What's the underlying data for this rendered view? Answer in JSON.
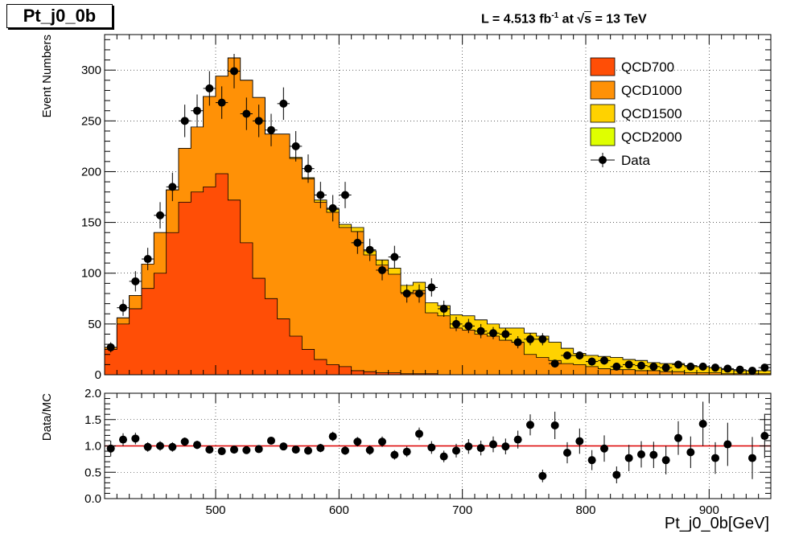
{
  "title": "Pt_j0_0b",
  "lumi": {
    "prefix": "L = 4.513 fb",
    "sup": "-1",
    "middle": " at  √",
    "s": "s",
    "suffix": " = 13 TeV"
  },
  "colors": {
    "QCD700": "#ff4e06",
    "QCD1000": "#ff9106",
    "QCD1500": "#ffd200",
    "QCD2000": "#dfff00",
    "Data": "#000000",
    "ratio_line": "#dd0000"
  },
  "chart_data": [
    {
      "type": "bar",
      "stacked": true,
      "xlabel": "Pt_j0_0b[GeV]",
      "ylabel": "Event Numbers",
      "xlim": [
        410,
        950
      ],
      "ylim": [
        0,
        335
      ],
      "grid": true,
      "legend_position": "top-right",
      "bin_edges": [
        410,
        420,
        430,
        440,
        450,
        460,
        470,
        480,
        490,
        500,
        510,
        520,
        530,
        540,
        550,
        560,
        570,
        580,
        590,
        600,
        610,
        620,
        630,
        640,
        650,
        660,
        670,
        680,
        690,
        700,
        710,
        720,
        730,
        740,
        750,
        760,
        770,
        780,
        790,
        800,
        810,
        820,
        830,
        840,
        850,
        860,
        870,
        880,
        890,
        900,
        910,
        920,
        930,
        940,
        950
      ],
      "series": [
        {
          "name": "QCD700",
          "values": [
            25,
            50,
            65,
            85,
            100,
            140,
            170,
            180,
            185,
            198,
            172,
            130,
            95,
            75,
            55,
            38,
            25,
            15,
            10,
            8,
            4,
            3,
            2,
            2,
            1,
            1,
            1,
            0,
            0,
            0,
            0,
            0,
            0,
            0,
            0,
            0,
            0,
            0,
            0,
            0,
            0,
            0,
            0,
            0,
            0,
            0,
            0,
            0,
            0,
            0,
            0,
            0,
            0,
            0
          ]
        },
        {
          "name": "QCD1000",
          "values": [
            2,
            6,
            13,
            24,
            40,
            42,
            53,
            64,
            89,
            96,
            140,
            160,
            178,
            162,
            182,
            175,
            168,
            155,
            150,
            137,
            137,
            115,
            106,
            97,
            80,
            82,
            60,
            58,
            46,
            44,
            40,
            38,
            34,
            32,
            20,
            17,
            14,
            11,
            10,
            8,
            6,
            5,
            5,
            4,
            4,
            3,
            3,
            2,
            2,
            2,
            1,
            1,
            1,
            1
          ]
        },
        {
          "name": "QCD1500",
          "values": [
            0,
            0,
            0,
            0,
            0,
            0,
            0,
            0,
            0,
            0,
            0,
            0,
            0,
            0,
            0,
            1,
            1,
            2,
            3,
            3,
            4,
            4,
            5,
            6,
            7,
            8,
            10,
            10,
            13,
            14,
            14,
            12,
            12,
            14,
            21,
            21,
            18,
            15,
            11,
            11,
            12,
            12,
            10,
            10,
            8,
            8,
            8,
            7,
            6,
            5,
            4,
            3,
            3,
            3
          ]
        },
        {
          "name": "QCD2000",
          "values": [
            0,
            0,
            0,
            0,
            0,
            0,
            0,
            0,
            0,
            0,
            0,
            0,
            0,
            0,
            0,
            0,
            0,
            0,
            0,
            0,
            0,
            0,
            0,
            0,
            0,
            0,
            0,
            0,
            0,
            0,
            0,
            0,
            0,
            0,
            0,
            0,
            0,
            0,
            0,
            0,
            0,
            0,
            0,
            0,
            0,
            0,
            0,
            0,
            0,
            0,
            0,
            0,
            0,
            0
          ]
        },
        {
          "name": "Data",
          "kind": "points",
          "values": [
            27,
            66,
            92,
            114,
            157,
            185,
            250,
            260,
            282,
            268,
            299,
            257,
            250,
            241,
            267,
            225,
            203,
            177,
            164,
            177,
            130,
            123,
            103,
            116,
            80,
            80,
            86,
            65,
            50,
            48,
            43,
            41,
            40,
            32,
            35,
            35,
            11,
            19,
            19,
            13,
            14,
            8,
            10,
            9,
            8,
            7,
            10,
            8,
            8,
            7,
            6,
            5,
            4,
            7
          ],
          "errors": [
            5,
            8,
            10,
            11,
            13,
            14,
            16,
            16,
            17,
            16,
            17,
            16,
            16,
            16,
            16,
            15,
            14,
            13,
            13,
            13,
            11,
            11,
            10,
            11,
            9,
            9,
            9,
            8,
            7,
            7,
            7,
            6,
            6,
            6,
            6,
            6,
            3,
            4,
            4,
            4,
            4,
            3,
            3,
            3,
            3,
            3,
            3,
            3,
            3,
            3,
            2,
            2,
            2,
            3
          ]
        }
      ]
    },
    {
      "type": "scatter",
      "xlabel": "Pt_j0_0b[GeV]",
      "ylabel": "Data/MC",
      "xlim": [
        410,
        950
      ],
      "ylim": [
        0,
        2
      ],
      "grid": true,
      "reference_line": 1.0,
      "x": [
        415,
        425,
        435,
        445,
        455,
        465,
        475,
        485,
        495,
        505,
        515,
        525,
        535,
        545,
        555,
        565,
        575,
        585,
        595,
        605,
        615,
        625,
        635,
        645,
        655,
        665,
        675,
        685,
        695,
        705,
        715,
        725,
        735,
        745,
        755,
        765,
        775,
        785,
        795,
        805,
        815,
        825,
        835,
        845,
        855,
        865,
        875,
        885,
        895,
        905,
        915,
        925,
        935,
        945
      ],
      "values": [
        0.95,
        1.12,
        1.14,
        0.98,
        1.0,
        0.98,
        1.08,
        1.02,
        0.93,
        0.9,
        0.93,
        0.92,
        0.94,
        1.1,
        0.99,
        0.93,
        0.91,
        0.96,
        1.18,
        0.91,
        1.08,
        0.92,
        1.08,
        0.83,
        0.89,
        1.23,
        0.97,
        0.8,
        0.91,
        0.99,
        0.96,
        1.03,
        0.99,
        1.12,
        1.4,
        0.43,
        1.39,
        0.87,
        1.09,
        0.73,
        0.95,
        0.45,
        0.77,
        0.84,
        0.83,
        0.73,
        1.15,
        0.88,
        1.42,
        0.77,
        1.03,
        0,
        0.77,
        1.19
      ],
      "errors": [
        0.15,
        0.12,
        0.11,
        0.09,
        0.09,
        0.09,
        0.08,
        0.08,
        0.07,
        0.07,
        0.07,
        0.07,
        0.07,
        0.07,
        0.07,
        0.07,
        0.07,
        0.08,
        0.09,
        0.08,
        0.09,
        0.09,
        0.1,
        0.09,
        0.1,
        0.12,
        0.12,
        0.11,
        0.13,
        0.14,
        0.14,
        0.15,
        0.15,
        0.17,
        0.2,
        0.12,
        0.26,
        0.2,
        0.24,
        0.19,
        0.25,
        0.16,
        0.25,
        0.25,
        0.25,
        0.27,
        0.32,
        0.3,
        0.42,
        0.3,
        0.41,
        0,
        0.4,
        0.42
      ]
    }
  ]
}
